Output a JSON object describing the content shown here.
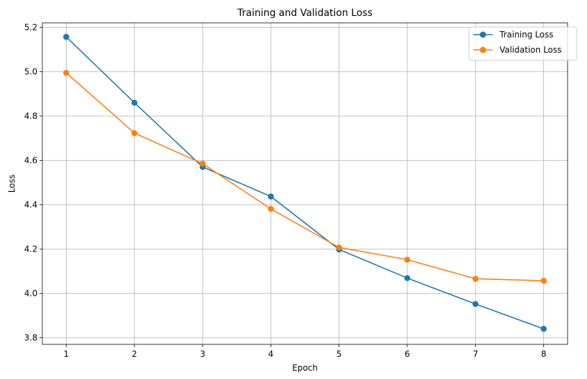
{
  "chart_data": {
    "type": "line",
    "title": "Training and Validation Loss",
    "xlabel": "Epoch",
    "ylabel": "Loss",
    "x": [
      1,
      2,
      3,
      4,
      5,
      6,
      7,
      8
    ],
    "xlim": [
      0.65,
      8.35
    ],
    "ylim": [
      3.77,
      5.22
    ],
    "xticks": [
      1,
      2,
      3,
      4,
      5,
      6,
      7,
      8
    ],
    "yticks": [
      3.8,
      4.0,
      4.2,
      4.4,
      4.6,
      4.8,
      5.0,
      5.2
    ],
    "ytick_labels": [
      "3.8",
      "4.0",
      "4.2",
      "4.4",
      "4.6",
      "4.8",
      "5.0",
      "5.2"
    ],
    "grid": true,
    "legend_position": "upper-right",
    "series": [
      {
        "name": "Training Loss",
        "color": "#1f77b4",
        "values": [
          5.157,
          4.86,
          4.57,
          4.437,
          4.198,
          4.069,
          3.952,
          3.84
        ]
      },
      {
        "name": "Validation Loss",
        "color": "#ff7f0e",
        "values": [
          4.995,
          4.723,
          4.585,
          4.381,
          4.207,
          4.152,
          4.066,
          4.057
        ]
      }
    ]
  }
}
